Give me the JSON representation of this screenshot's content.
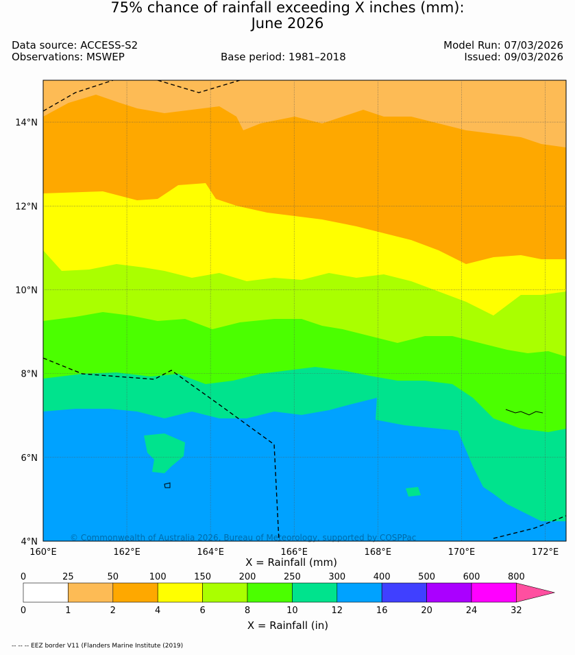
{
  "title": {
    "line1": "75% chance of rainfall exceeding X inches (mm):",
    "line2": "June 2026"
  },
  "meta": {
    "data_source": "Data source: ACCESS-S2",
    "observations": "Observations: MSWEP",
    "base_period": "Base period: 1981–2018",
    "model_run": "Model Run: 07/03/2026",
    "issued": "Issued: 09/03/2026"
  },
  "map": {
    "lon_range": [
      160,
      172.5
    ],
    "lat_range": [
      4,
      15
    ],
    "lon_ticks": [
      "160°E",
      "162°E",
      "164°E",
      "166°E",
      "168°E",
      "170°E",
      "172°E"
    ],
    "lat_ticks": [
      "4°N",
      "6°N",
      "8°N",
      "10°N",
      "12°N",
      "14°N"
    ],
    "copyright": "© Commonwealth of Australia 2026, Bureau of Meteorology, supported by COSPPac",
    "zones": [
      {
        "band": "25-50 mm",
        "color": "#fdbb55"
      },
      {
        "band": "50-100 mm",
        "color": "#fea800"
      },
      {
        "band": "100-150 mm",
        "color": "#ffff00"
      },
      {
        "band": "150-200 mm",
        "color": "#aaff00"
      },
      {
        "band": "200-250 mm",
        "color": "#4bff00"
      },
      {
        "band": "250-300 mm",
        "color": "#00e38d"
      },
      {
        "band": "300-400 mm",
        "color": "#00a2ff"
      }
    ]
  },
  "legend": {
    "mm_label": "X = Rainfall (mm)",
    "in_label": "X = Rainfall (in)",
    "mm_ticks": [
      "0",
      "25",
      "50",
      "100",
      "150",
      "200",
      "250",
      "300",
      "400",
      "500",
      "600",
      "800"
    ],
    "in_ticks": [
      "0",
      "1",
      "2",
      "4",
      "6",
      "8",
      "10",
      "12",
      "16",
      "20",
      "24",
      "32"
    ],
    "colors": [
      "#ffffff",
      "#fdbb55",
      "#fea800",
      "#ffff00",
      "#aaff00",
      "#4bff00",
      "#00e38d",
      "#00a2ff",
      "#4040ff",
      "#aa00ff",
      "#ff00ff"
    ],
    "arrow_color": "#ff4fa0"
  },
  "footer": "-- -- -- EEZ border V11 (Flanders Marine Institute (2019)"
}
